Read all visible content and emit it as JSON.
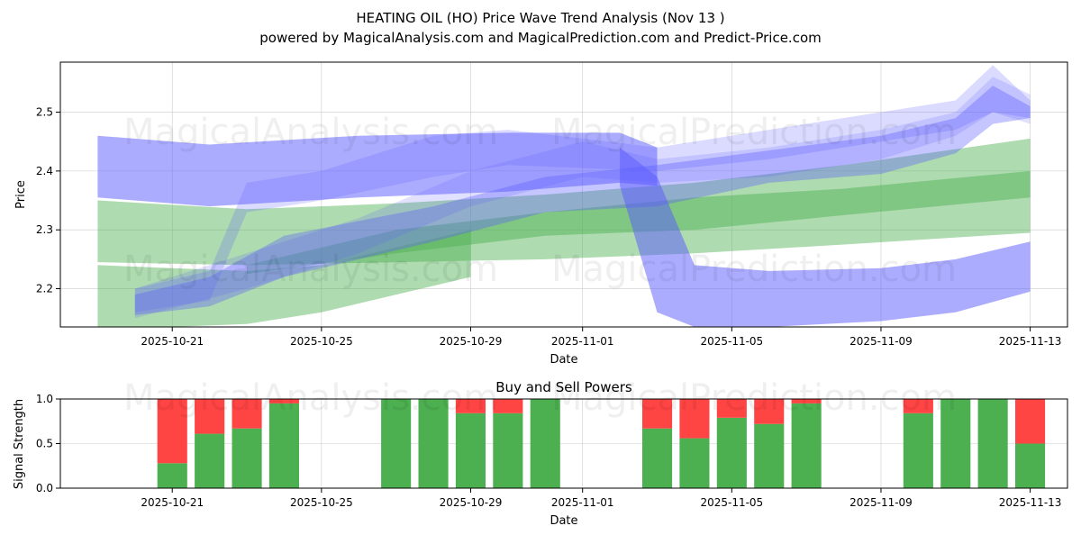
{
  "figure": {
    "title_line1": "HEATING OIL (HO) Price Wave Trend Analysis (Nov 13 )",
    "title_line2": "powered by MagicalAnalysis.com and MagicalPrediction.com and Predict-Price.com",
    "watermarks": [
      "MagicalAnalysis.com",
      "MagicalPrediction.com"
    ]
  },
  "colors": {
    "blue_band": "#5a5aff",
    "green_band": "#4caf50",
    "buy": "#4caf50",
    "sell": "#ff4444"
  },
  "chart_data": [
    {
      "type": "area",
      "name": "price-wave-trend",
      "xlabel": "Date",
      "ylabel": "Price",
      "x_range": [
        "2025-10-18",
        "2025-11-14"
      ],
      "ylim": [
        2.135,
        2.585
      ],
      "y_ticks": [
        2.2,
        2.3,
        2.4,
        2.5
      ],
      "x_ticks": [
        "2025-10-21",
        "2025-10-25",
        "2025-10-29",
        "2025-11-01",
        "2025-11-05",
        "2025-11-09",
        "2025-11-13"
      ],
      "grid": true,
      "series": [
        {
          "name": "green-wide-band",
          "color": "green",
          "opacity": 0.45,
          "x": [
            "2025-10-19",
            "2025-10-23",
            "2025-10-27",
            "2025-10-31",
            "2025-11-04",
            "2025-11-08",
            "2025-11-13"
          ],
          "upper": [
            2.35,
            2.335,
            2.345,
            2.36,
            2.38,
            2.41,
            2.455
          ],
          "lower": [
            2.245,
            2.24,
            2.245,
            2.25,
            2.26,
            2.275,
            2.295
          ]
        },
        {
          "name": "green-narrow-band",
          "color": "green",
          "opacity": 0.45,
          "x": [
            "2025-10-23",
            "2025-10-27",
            "2025-10-31",
            "2025-11-04",
            "2025-11-08",
            "2025-11-13"
          ],
          "upper": [
            2.24,
            2.3,
            2.33,
            2.355,
            2.37,
            2.4
          ],
          "lower": [
            2.225,
            2.26,
            2.29,
            2.3,
            2.325,
            2.355
          ]
        },
        {
          "name": "green-low-band",
          "color": "green",
          "opacity": 0.45,
          "x": [
            "2025-10-19",
            "2025-10-21",
            "2025-10-23",
            "2025-10-25",
            "2025-10-27",
            "2025-10-29"
          ],
          "upper": [
            2.24,
            2.235,
            2.23,
            2.24,
            2.27,
            2.3
          ],
          "lower": [
            2.135,
            2.135,
            2.14,
            2.16,
            2.19,
            2.22
          ]
        },
        {
          "name": "blue-upper-band",
          "color": "blue",
          "opacity": 0.5,
          "x": [
            "2025-10-19",
            "2025-10-22",
            "2025-10-26",
            "2025-10-30",
            "2025-11-02",
            "2025-11-03"
          ],
          "upper": [
            2.46,
            2.445,
            2.46,
            2.465,
            2.465,
            2.44
          ],
          "lower": [
            2.355,
            2.34,
            2.355,
            2.365,
            2.38,
            2.375
          ]
        },
        {
          "name": "blue-drop-band",
          "color": "blue",
          "opacity": 0.5,
          "x": [
            "2025-11-02",
            "2025-11-03",
            "2025-11-04",
            "2025-11-06",
            "2025-11-09",
            "2025-11-11",
            "2025-11-13"
          ],
          "upper": [
            2.44,
            2.39,
            2.24,
            2.23,
            2.235,
            2.25,
            2.28
          ],
          "lower": [
            2.375,
            2.16,
            2.135,
            2.135,
            2.145,
            2.16,
            2.195
          ]
        },
        {
          "name": "blue-forecast-band",
          "color": "blue",
          "opacity": 0.35,
          "x": [
            "2025-10-20",
            "2025-10-22",
            "2025-10-24",
            "2025-10-28",
            "2025-10-31",
            "2025-11-03",
            "2025-11-06",
            "2025-11-09",
            "2025-11-11",
            "2025-11-12",
            "2025-11-13"
          ],
          "upper": [
            2.19,
            2.22,
            2.29,
            2.34,
            2.39,
            2.41,
            2.435,
            2.46,
            2.49,
            2.545,
            2.51
          ],
          "lower": [
            2.155,
            2.17,
            2.22,
            2.28,
            2.33,
            2.34,
            2.38,
            2.395,
            2.43,
            2.48,
            2.49
          ]
        },
        {
          "name": "blue-forecast-band-2",
          "color": "blue",
          "opacity": 0.22,
          "x": [
            "2025-10-20",
            "2025-10-22",
            "2025-10-23",
            "2025-10-25",
            "2025-10-28",
            "2025-10-30",
            "2025-11-03",
            "2025-11-06",
            "2025-11-09",
            "2025-11-11",
            "2025-11-12",
            "2025-11-13"
          ],
          "upper": [
            2.2,
            2.23,
            2.38,
            2.4,
            2.46,
            2.47,
            2.44,
            2.47,
            2.5,
            2.52,
            2.58,
            2.52
          ],
          "lower": [
            2.16,
            2.18,
            2.33,
            2.35,
            2.39,
            2.41,
            2.4,
            2.42,
            2.45,
            2.47,
            2.5,
            2.49
          ]
        },
        {
          "name": "blue-forecast-band-3",
          "color": "blue",
          "opacity": 0.18,
          "x": [
            "2025-10-20",
            "2025-10-23",
            "2025-10-26",
            "2025-10-29",
            "2025-11-01",
            "2025-11-03",
            "2025-11-06",
            "2025-11-09",
            "2025-11-11",
            "2025-11-12",
            "2025-11-13"
          ],
          "upper": [
            2.2,
            2.26,
            2.32,
            2.4,
            2.45,
            2.42,
            2.44,
            2.47,
            2.5,
            2.56,
            2.53
          ],
          "lower": [
            2.15,
            2.2,
            2.26,
            2.34,
            2.39,
            2.38,
            2.39,
            2.42,
            2.46,
            2.5,
            2.48
          ]
        }
      ]
    },
    {
      "type": "bar",
      "name": "buy-and-sell-powers",
      "title": "Buy and Sell Powers",
      "xlabel": "Date",
      "ylabel": "Signal Strength",
      "ylim": [
        0,
        1.0
      ],
      "y_ticks": [
        "0.0",
        "0.5",
        "1.0"
      ],
      "x_range": [
        "2025-10-18",
        "2025-11-14"
      ],
      "x_ticks": [
        "2025-10-21",
        "2025-10-25",
        "2025-10-29",
        "2025-11-01",
        "2025-11-05",
        "2025-11-09",
        "2025-11-13"
      ],
      "categories": [
        "2025-10-21",
        "2025-10-22",
        "2025-10-23",
        "2025-10-24",
        "2025-10-27",
        "2025-10-28",
        "2025-10-29",
        "2025-10-30",
        "2025-10-31",
        "2025-11-03",
        "2025-11-04",
        "2025-11-05",
        "2025-11-06",
        "2025-11-07",
        "2025-11-10",
        "2025-11-11",
        "2025-11-12",
        "2025-11-13"
      ],
      "series": [
        {
          "name": "buy",
          "values": [
            0.28,
            0.61,
            0.67,
            0.95,
            1.0,
            1.0,
            0.84,
            0.84,
            1.0,
            0.67,
            0.56,
            0.79,
            0.72,
            0.95,
            0.84,
            1.0,
            1.0,
            0.5
          ]
        },
        {
          "name": "sell",
          "values": [
            0.72,
            0.39,
            0.33,
            0.05,
            0.0,
            0.0,
            0.16,
            0.16,
            0.0,
            0.33,
            0.44,
            0.21,
            0.28,
            0.05,
            0.16,
            0.0,
            0.0,
            0.5
          ]
        }
      ]
    }
  ]
}
